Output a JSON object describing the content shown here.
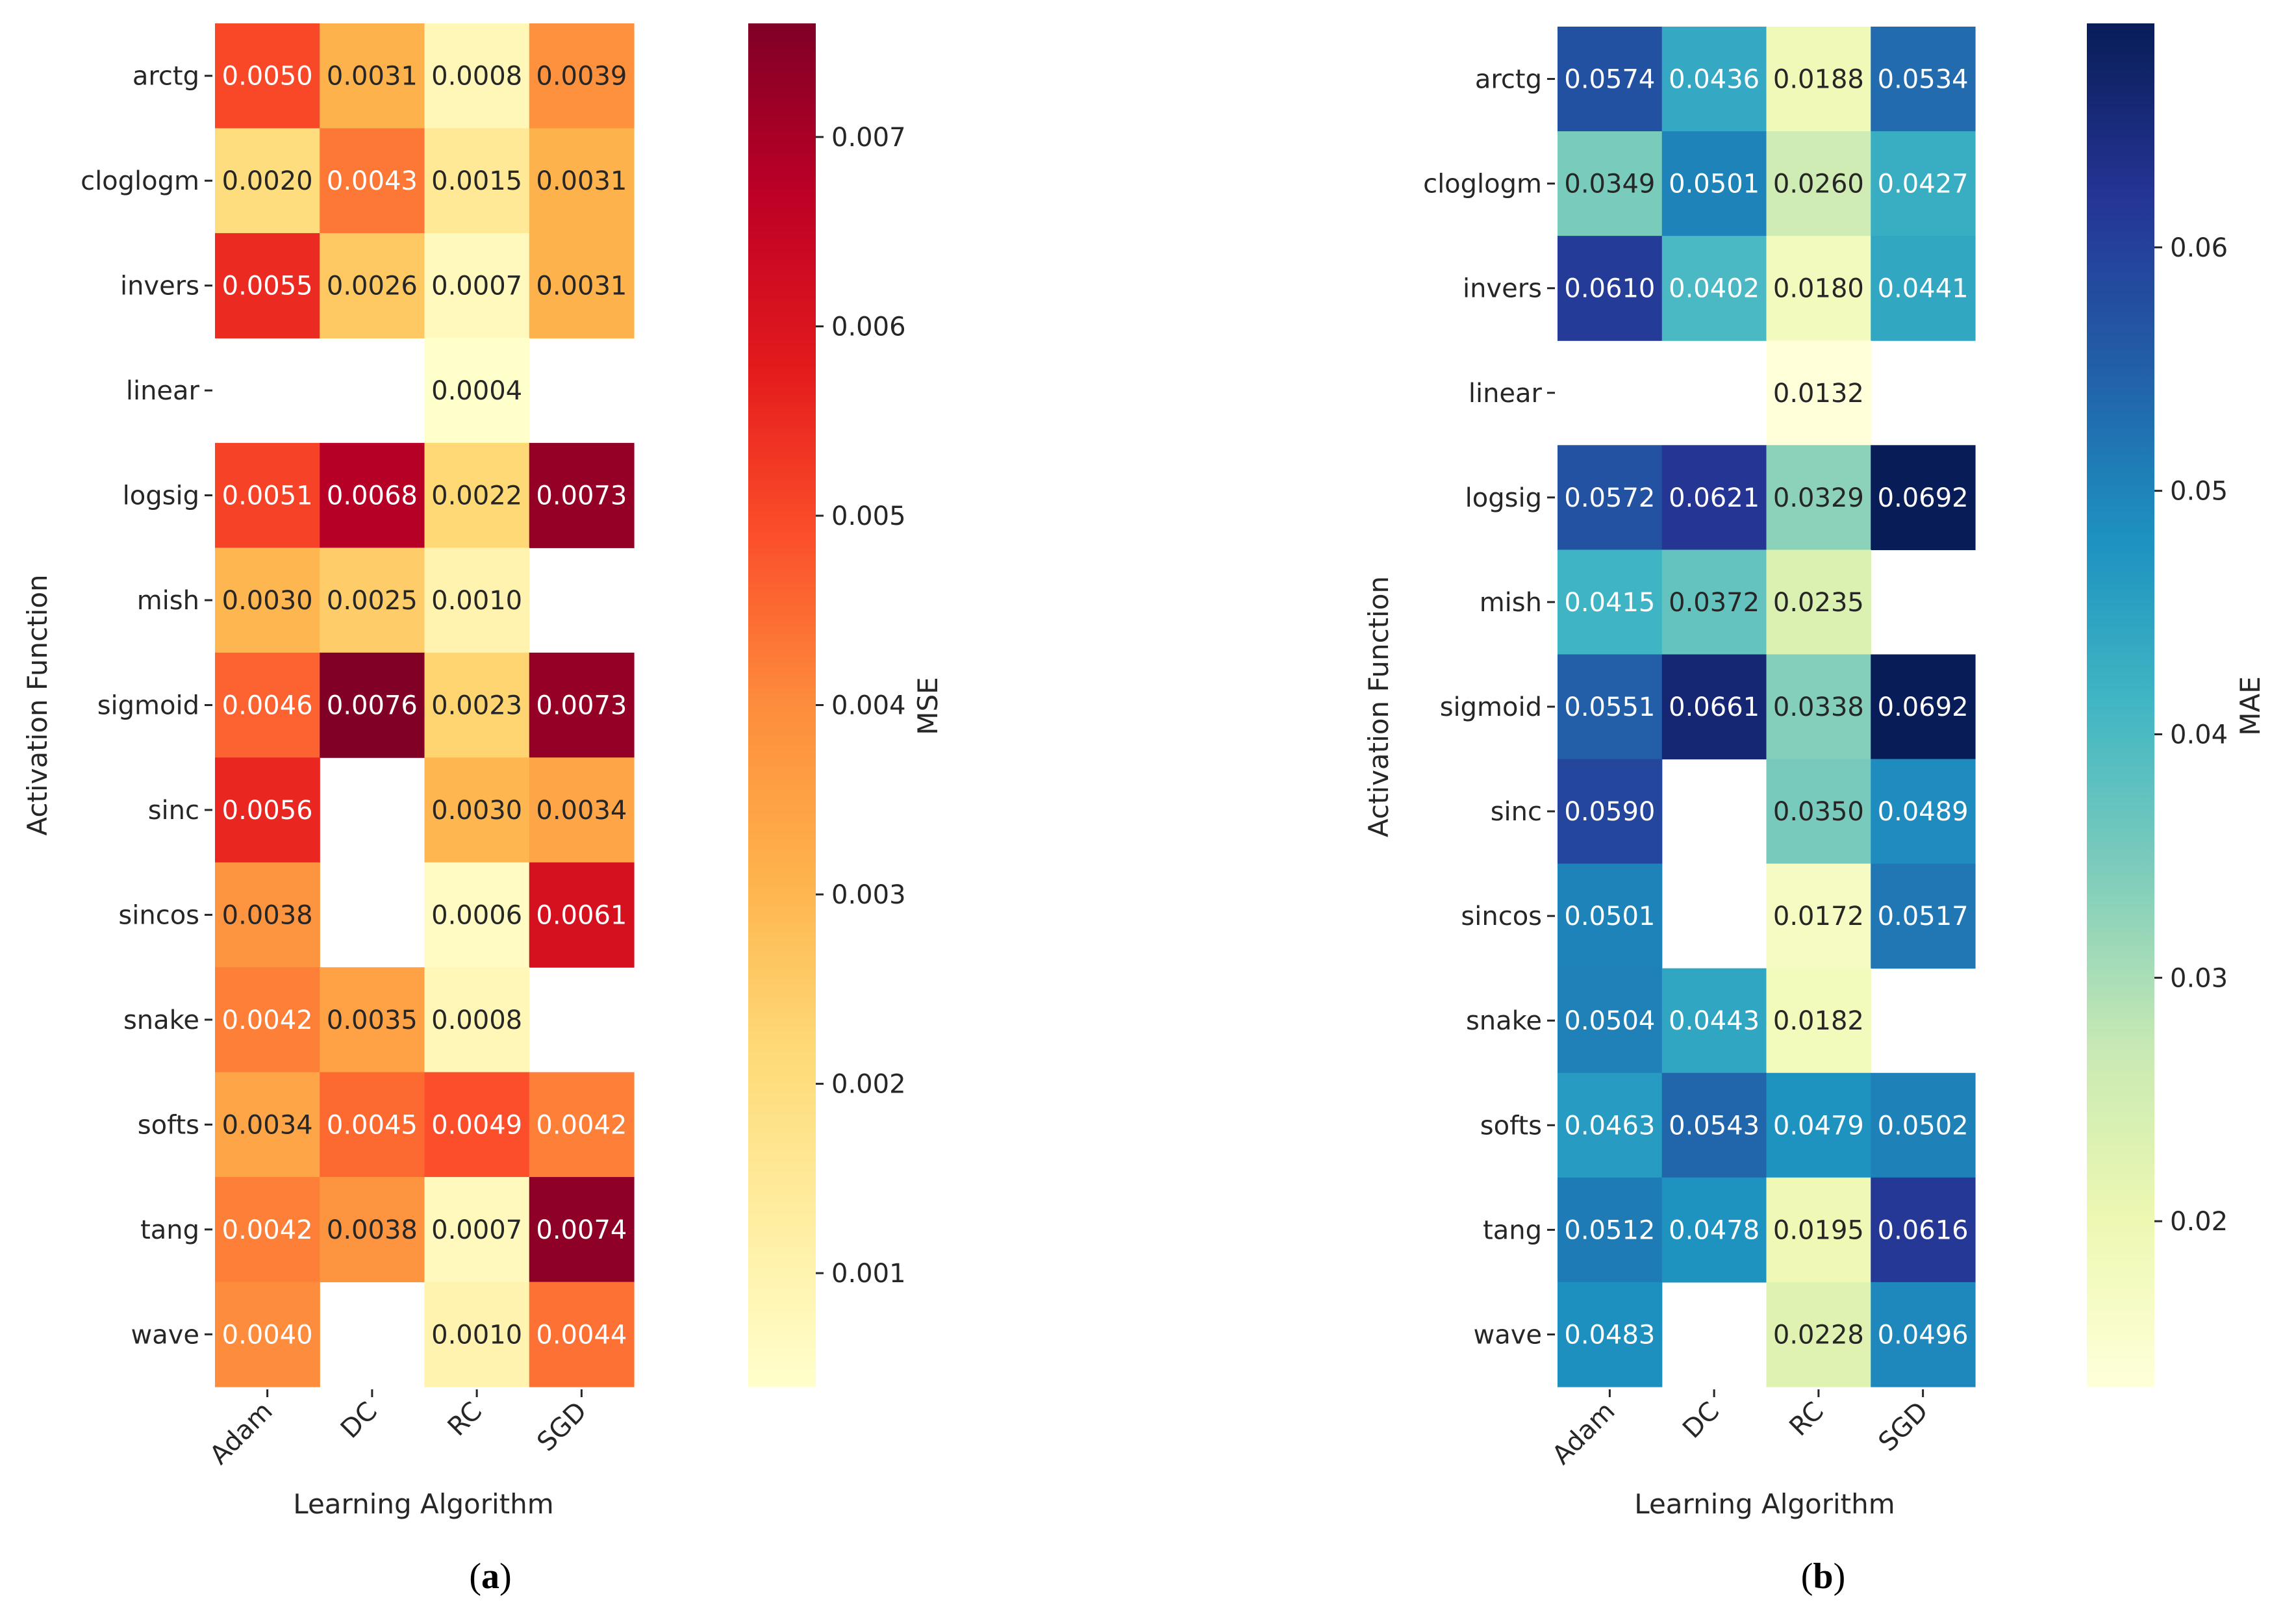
{
  "chart_data": [
    {
      "type": "heatmap",
      "panel_label": "a",
      "caption": "(a)",
      "xlabel": "Learning Algorithm",
      "ylabel": "Activation Function",
      "colorbar_label": "MSE",
      "colormap": "YlOrRd",
      "colormap_stops": [
        "#ffffcc",
        "#ffeda0",
        "#fed976",
        "#feb24c",
        "#fd8d3c",
        "#fc4e2a",
        "#e31a1c",
        "#bd0026",
        "#800026"
      ],
      "vmin": 0.0004,
      "vmax": 0.0076,
      "colorbar_ticks": [
        "0.001",
        "0.002",
        "0.003",
        "0.004",
        "0.005",
        "0.006",
        "0.007"
      ],
      "x_categories": [
        "Adam",
        "DC",
        "RC",
        "SGD"
      ],
      "y_categories": [
        "arctg",
        "cloglogm",
        "invers",
        "linear",
        "logsig",
        "mish",
        "sigmoid",
        "sinc",
        "sincos",
        "snake",
        "softs",
        "tang",
        "wave"
      ],
      "values": [
        [
          0.005,
          0.0031,
          0.0008,
          0.0039
        ],
        [
          0.002,
          0.0043,
          0.0015,
          0.0031
        ],
        [
          0.0055,
          0.0026,
          0.0007,
          0.0031
        ],
        [
          null,
          null,
          0.0004,
          null
        ],
        [
          0.0051,
          0.0068,
          0.0022,
          0.0073
        ],
        [
          0.003,
          0.0025,
          0.001,
          null
        ],
        [
          0.0046,
          0.0076,
          0.0023,
          0.0073
        ],
        [
          0.0056,
          null,
          0.003,
          0.0034
        ],
        [
          0.0038,
          null,
          0.0006,
          0.0061
        ],
        [
          0.0042,
          0.0035,
          0.0008,
          null
        ],
        [
          0.0034,
          0.0045,
          0.0049,
          0.0042
        ],
        [
          0.0042,
          0.0038,
          0.0007,
          0.0074
        ],
        [
          0.004,
          null,
          0.001,
          0.0044
        ]
      ]
    },
    {
      "type": "heatmap",
      "panel_label": "b",
      "caption": "(b)",
      "xlabel": "Learning Algorithm",
      "ylabel": "Activation Function",
      "colorbar_label": "MAE",
      "colormap": "YlGnBu",
      "colormap_stops": [
        "#ffffd9",
        "#edf8b1",
        "#c7e9b4",
        "#7fcdbb",
        "#41b6c4",
        "#1d91c0",
        "#225ea8",
        "#253494",
        "#081d58"
      ],
      "vmin": 0.0132,
      "vmax": 0.0692,
      "colorbar_ticks": [
        "0.02",
        "0.03",
        "0.04",
        "0.05",
        "0.06"
      ],
      "x_categories": [
        "Adam",
        "DC",
        "RC",
        "SGD"
      ],
      "y_categories": [
        "arctg",
        "cloglogm",
        "invers",
        "linear",
        "logsig",
        "mish",
        "sigmoid",
        "sinc",
        "sincos",
        "snake",
        "softs",
        "tang",
        "wave"
      ],
      "values": [
        [
          0.0574,
          0.0436,
          0.0188,
          0.0534
        ],
        [
          0.0349,
          0.0501,
          0.026,
          0.0427
        ],
        [
          0.061,
          0.0402,
          0.018,
          0.0441
        ],
        [
          null,
          null,
          0.0132,
          null
        ],
        [
          0.0572,
          0.0621,
          0.0329,
          0.0692
        ],
        [
          0.0415,
          0.0372,
          0.0235,
          null
        ],
        [
          0.0551,
          0.0661,
          0.0338,
          0.0692
        ],
        [
          0.059,
          null,
          0.035,
          0.0489
        ],
        [
          0.0501,
          null,
          0.0172,
          0.0517
        ],
        [
          0.0504,
          0.0443,
          0.0182,
          null
        ],
        [
          0.0463,
          0.0543,
          0.0479,
          0.0502
        ],
        [
          0.0512,
          0.0478,
          0.0195,
          0.0616
        ],
        [
          0.0483,
          null,
          0.0228,
          0.0496
        ]
      ]
    }
  ]
}
